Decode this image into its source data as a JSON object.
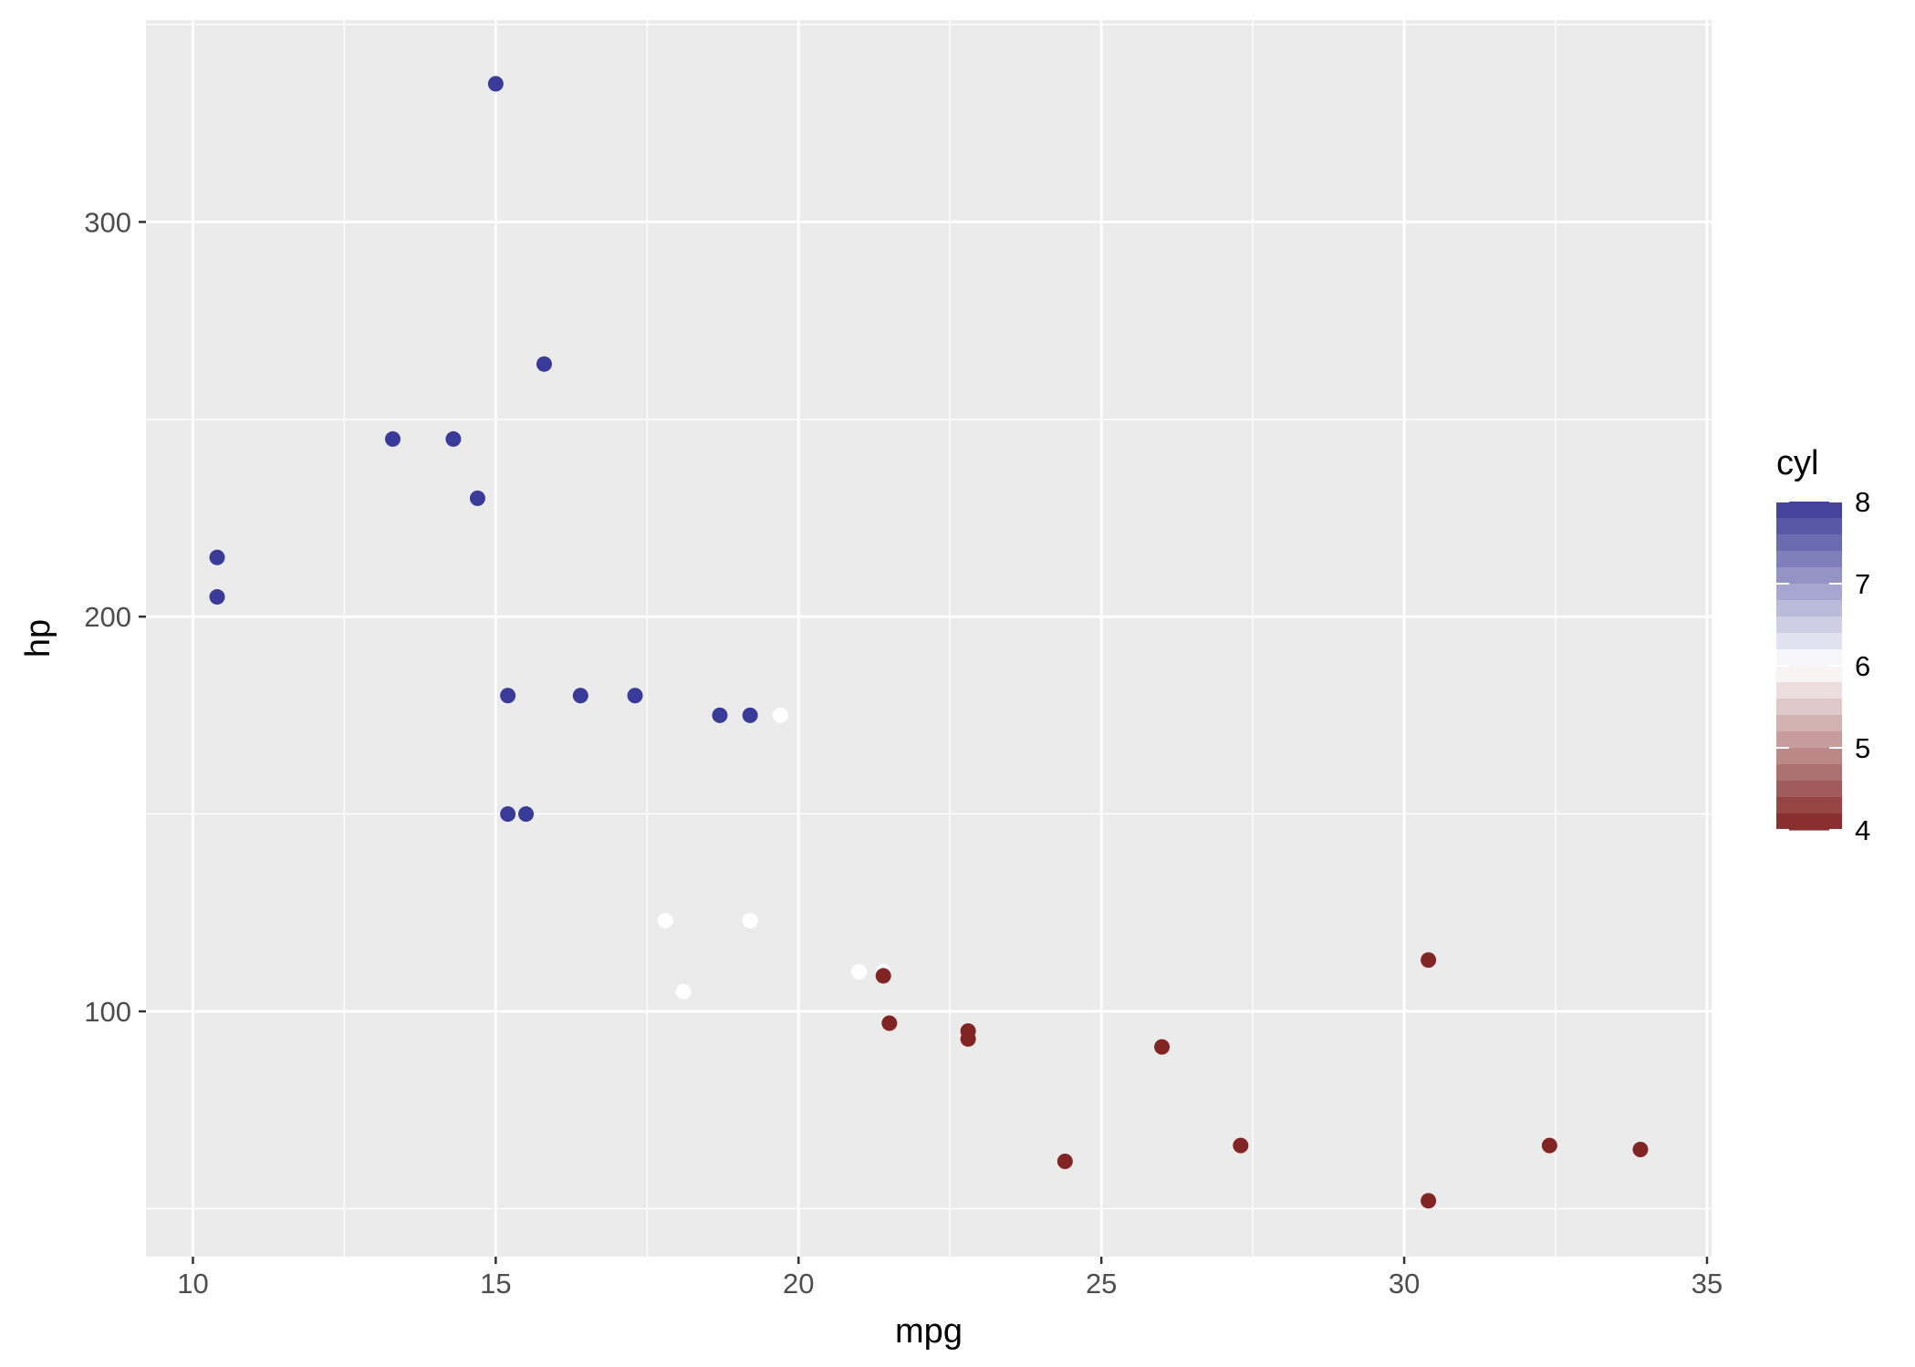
{
  "chart_data": {
    "type": "scatter",
    "title": "",
    "xlabel": "mpg",
    "ylabel": "hp",
    "xlim": [
      9.225,
      35.075
    ],
    "ylim": [
      37.85,
      351.15
    ],
    "x_ticks": [
      10,
      15,
      20,
      25,
      30,
      35
    ],
    "x_tick_labels": [
      "10",
      "15",
      "20",
      "25",
      "30",
      "35"
    ],
    "y_ticks": [
      100,
      200,
      300
    ],
    "y_tick_labels": [
      "100",
      "200",
      "300"
    ],
    "grid": true,
    "panel_background": "#ebebeb",
    "legend": {
      "title": "cyl",
      "position": "right",
      "type": "colorbar",
      "range": [
        4,
        8
      ],
      "breaks": [
        4,
        5,
        6,
        7,
        8
      ],
      "break_labels": [
        "4",
        "5",
        "6",
        "7",
        "8"
      ],
      "low_color": "#832424",
      "mid_color": "#ffffff",
      "high_color": "#3a3a98",
      "midpoint": 6
    },
    "points": [
      {
        "x": 21.0,
        "y": 110,
        "cyl": 6
      },
      {
        "x": 21.0,
        "y": 110,
        "cyl": 6
      },
      {
        "x": 22.8,
        "y": 93,
        "cyl": 4
      },
      {
        "x": 21.4,
        "y": 110,
        "cyl": 6
      },
      {
        "x": 18.7,
        "y": 175,
        "cyl": 8
      },
      {
        "x": 18.1,
        "y": 105,
        "cyl": 6
      },
      {
        "x": 14.3,
        "y": 245,
        "cyl": 8
      },
      {
        "x": 24.4,
        "y": 62,
        "cyl": 4
      },
      {
        "x": 22.8,
        "y": 95,
        "cyl": 4
      },
      {
        "x": 19.2,
        "y": 123,
        "cyl": 6
      },
      {
        "x": 17.8,
        "y": 123,
        "cyl": 6
      },
      {
        "x": 16.4,
        "y": 180,
        "cyl": 8
      },
      {
        "x": 17.3,
        "y": 180,
        "cyl": 8
      },
      {
        "x": 15.2,
        "y": 180,
        "cyl": 8
      },
      {
        "x": 10.4,
        "y": 205,
        "cyl": 8
      },
      {
        "x": 10.4,
        "y": 215,
        "cyl": 8
      },
      {
        "x": 14.7,
        "y": 230,
        "cyl": 8
      },
      {
        "x": 32.4,
        "y": 66,
        "cyl": 4
      },
      {
        "x": 30.4,
        "y": 52,
        "cyl": 4
      },
      {
        "x": 33.9,
        "y": 65,
        "cyl": 4
      },
      {
        "x": 21.5,
        "y": 97,
        "cyl": 4
      },
      {
        "x": 15.5,
        "y": 150,
        "cyl": 8
      },
      {
        "x": 15.2,
        "y": 150,
        "cyl": 8
      },
      {
        "x": 13.3,
        "y": 245,
        "cyl": 8
      },
      {
        "x": 19.2,
        "y": 175,
        "cyl": 8
      },
      {
        "x": 27.3,
        "y": 66,
        "cyl": 4
      },
      {
        "x": 26.0,
        "y": 91,
        "cyl": 4
      },
      {
        "x": 30.4,
        "y": 113,
        "cyl": 4
      },
      {
        "x": 15.8,
        "y": 264,
        "cyl": 8
      },
      {
        "x": 19.7,
        "y": 175,
        "cyl": 6
      },
      {
        "x": 15.0,
        "y": 335,
        "cyl": 8
      },
      {
        "x": 21.4,
        "y": 109,
        "cyl": 4
      }
    ]
  }
}
